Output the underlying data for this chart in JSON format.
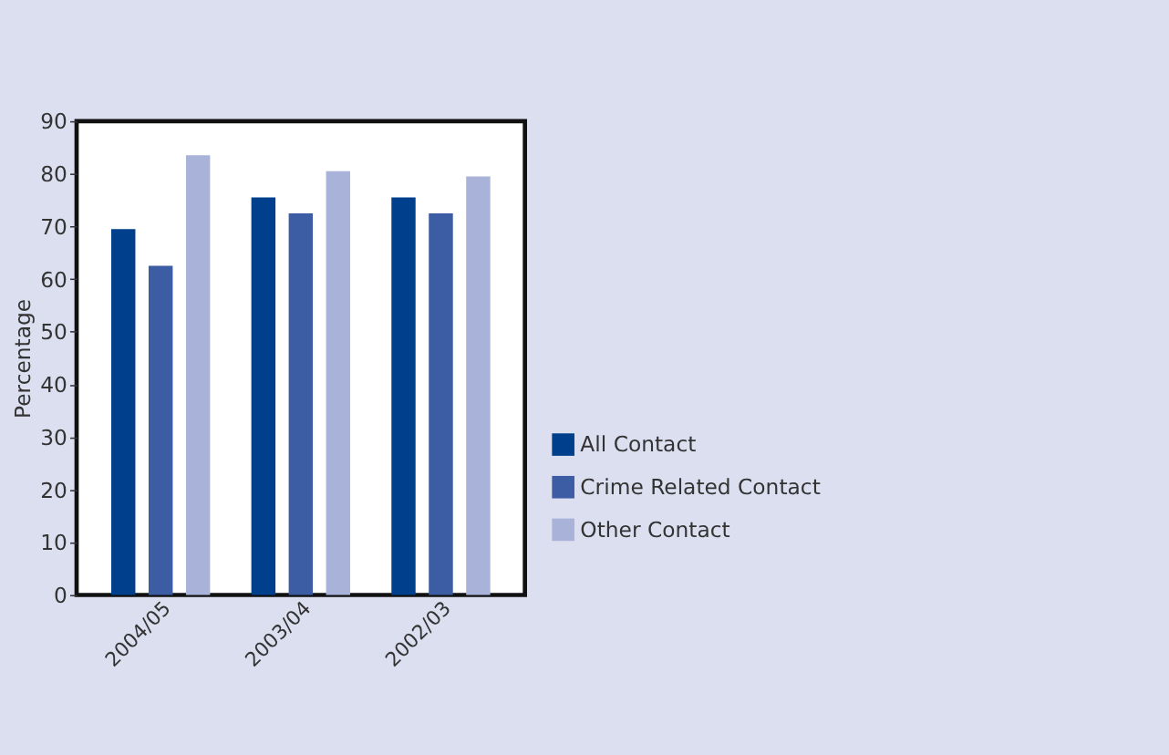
{
  "chart_data": {
    "type": "bar",
    "ylabel": "Percentage",
    "categories": [
      "2004/05",
      "2003/04",
      "2002/03"
    ],
    "series": [
      {
        "name": "All Contact",
        "color": "#003f8c",
        "values": [
          69.5,
          75.5,
          75.5
        ]
      },
      {
        "name": "Crime Related Contact",
        "color": "#3c5ca4",
        "values": [
          62.5,
          72.5,
          72.5
        ]
      },
      {
        "name": "Other Contact",
        "color": "#a9b3d9",
        "values": [
          83.5,
          80.5,
          79.5
        ]
      }
    ],
    "ylim": [
      0,
      90
    ],
    "yticks": [
      0,
      10,
      20,
      30,
      40,
      50,
      60,
      70,
      80,
      90
    ],
    "grid": false,
    "legend": "right"
  }
}
